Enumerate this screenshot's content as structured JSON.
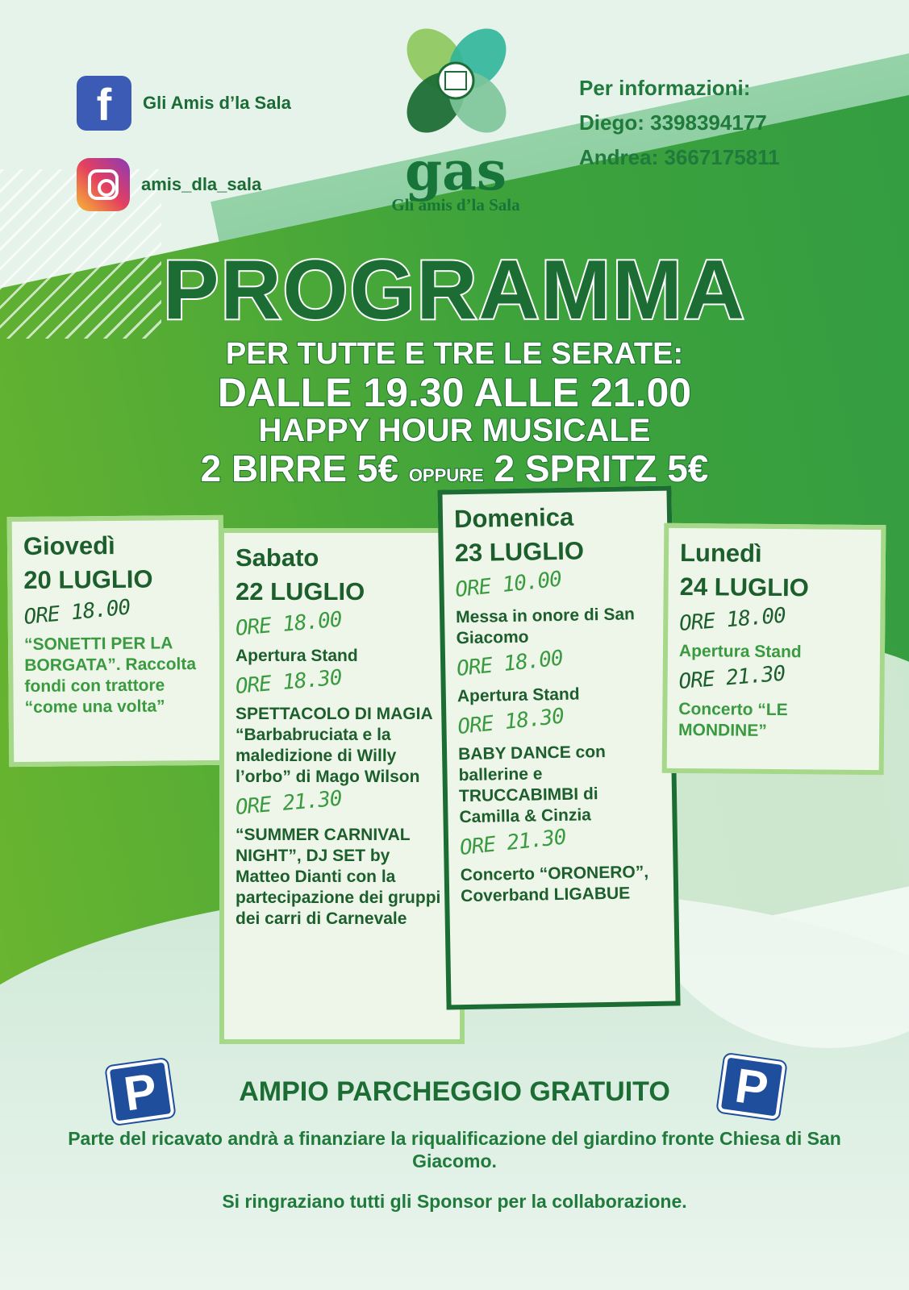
{
  "social": {
    "facebook": "Gli Amis d’la Sala",
    "instagram": "amis_dla_sala"
  },
  "logo": {
    "mark": "gas",
    "name": "Gli amis d’la Sala"
  },
  "info": {
    "title": "Per informazioni:",
    "contacts": [
      "Diego: 3398394177",
      "Andrea: 3667175811"
    ]
  },
  "title": "PROGRAMMA",
  "happy_hour": {
    "line1": "PER TUTTE E TRE LE SERATE:",
    "line2": "DALLE 19.30 ALLE 21.00",
    "line3": "HAPPY HOUR MUSICALE",
    "offer_a": "2 BIRRE 5€",
    "oppure": "OPPURE",
    "offer_b": "2 SPRITZ 5€"
  },
  "days": [
    {
      "day": "Giovedì",
      "date": "20 LUGLIO",
      "events": [
        {
          "time": "ORE 18.00",
          "text": "“SONETTI PER LA BORGATA”. Raccolta fondi con trattore “come una volta”"
        }
      ]
    },
    {
      "day": "Sabato",
      "date": "22 LUGLIO",
      "events": [
        {
          "time": "ORE 18.00",
          "text": "Apertura Stand"
        },
        {
          "time": "ORE 18.30",
          "text": "SPETTACOLO DI MAGIA “Barbabruciata e la maledizione di Willy l’orbo” di Mago Wilson"
        },
        {
          "time": "ORE 21.30",
          "text": "“SUMMER CARNIVAL NIGHT”, DJ SET by Matteo Dianti con la partecipazione dei gruppi dei carri di Carnevale"
        }
      ]
    },
    {
      "day": "Domenica",
      "date": "23 LUGLIO",
      "events": [
        {
          "time": "ORE 10.00",
          "text": "Messa in onore di San Giacomo"
        },
        {
          "time": "ORE 18.00",
          "text": "Apertura Stand"
        },
        {
          "time": "ORE 18.30",
          "text": "BABY DANCE con ballerine e TRUCCABIMBI di Camilla & Cinzia"
        },
        {
          "time": "ORE 21.30",
          "text": "Concerto “ORONERO”, Coverband LIGABUE"
        }
      ]
    },
    {
      "day": "Lunedì",
      "date": "24 LUGLIO",
      "events": [
        {
          "time": "ORE 18.00",
          "text": "Apertura Stand"
        },
        {
          "time": "ORE 21.30",
          "text": "Concerto “LE MONDINE”"
        }
      ]
    }
  ],
  "parking": {
    "icon": "P",
    "text": "AMPIO PARCHEGGIO GRATUITO"
  },
  "footer": {
    "note": "Parte del ricavato andrà a finanziare la riqualificazione del giardino fronte Chiesa di San Giacomo.",
    "thanks": "Si ringraziano tutti gli Sponsor per la collaborazione."
  },
  "colors": {
    "dark_green": "#1c6d34",
    "light_green": "#3a9a3f",
    "parking_blue": "#1f4f9c"
  }
}
